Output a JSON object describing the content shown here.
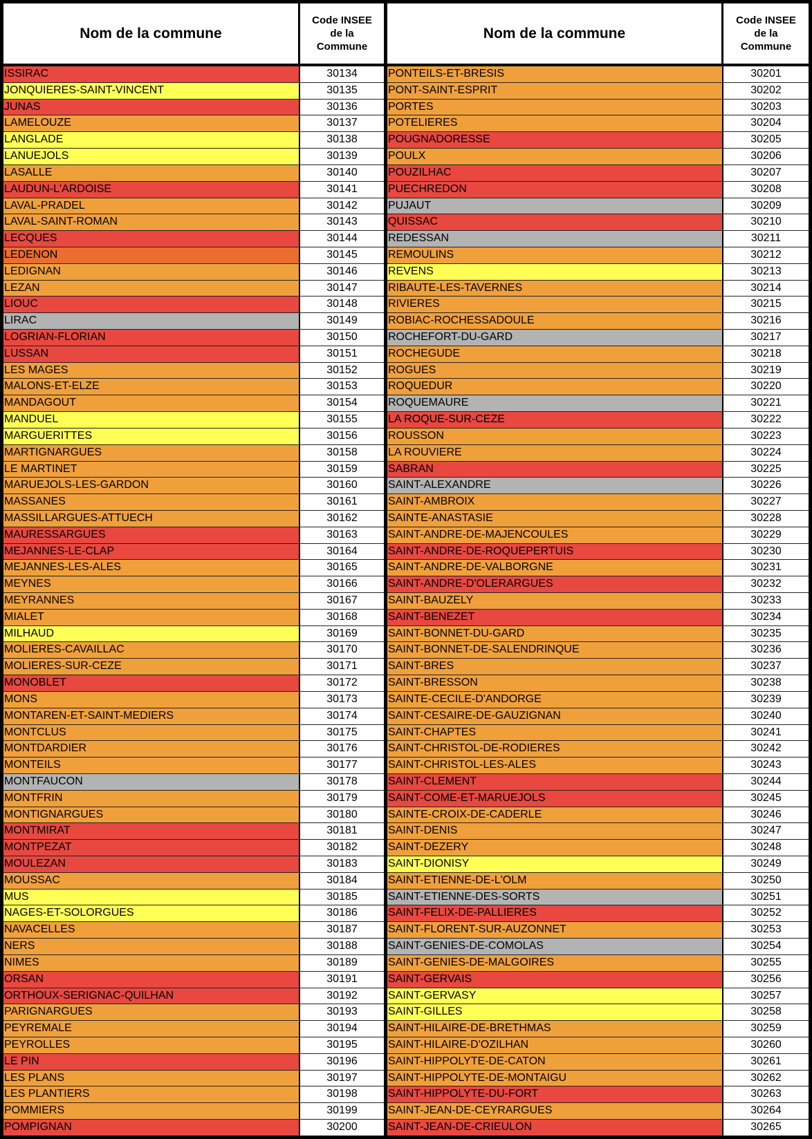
{
  "colors": {
    "r": "#e8483f",
    "o": "#f0a03b",
    "y": "#ffff55",
    "g": "#b3b3b3",
    "d": "#eb6e2e"
  },
  "headers": {
    "name": "Nom de la commune",
    "code_line1": "Code INSEE",
    "code_line2": "de la",
    "code_line3": "Commune"
  },
  "left": [
    [
      "ISSIRAC",
      "30134",
      "r"
    ],
    [
      "JONQUIERES-SAINT-VINCENT",
      "30135",
      "y"
    ],
    [
      "JUNAS",
      "30136",
      "r"
    ],
    [
      "LAMELOUZE",
      "30137",
      "o"
    ],
    [
      "LANGLADE",
      "30138",
      "y"
    ],
    [
      "LANUEJOLS",
      "30139",
      "y"
    ],
    [
      "LASALLE",
      "30140",
      "o"
    ],
    [
      "LAUDUN-L'ARDOISE",
      "30141",
      "r"
    ],
    [
      "LAVAL-PRADEL",
      "30142",
      "o"
    ],
    [
      "LAVAL-SAINT-ROMAN",
      "30143",
      "o"
    ],
    [
      "LECQUES",
      "30144",
      "r"
    ],
    [
      "LEDENON",
      "30145",
      "d"
    ],
    [
      "LEDIGNAN",
      "30146",
      "o"
    ],
    [
      "LEZAN",
      "30147",
      "o"
    ],
    [
      "LIOUC",
      "30148",
      "r"
    ],
    [
      "LIRAC",
      "30149",
      "g"
    ],
    [
      "LOGRIAN-FLORIAN",
      "30150",
      "r"
    ],
    [
      "LUSSAN",
      "30151",
      "r"
    ],
    [
      "LES MAGES",
      "30152",
      "o"
    ],
    [
      "MALONS-ET-ELZE",
      "30153",
      "o"
    ],
    [
      "MANDAGOUT",
      "30154",
      "o"
    ],
    [
      "MANDUEL",
      "30155",
      "y"
    ],
    [
      "MARGUERITTES",
      "30156",
      "y"
    ],
    [
      "MARTIGNARGUES",
      "30158",
      "o"
    ],
    [
      "LE MARTINET",
      "30159",
      "o"
    ],
    [
      "MARUEJOLS-LES-GARDON",
      "30160",
      "o"
    ],
    [
      "MASSANES",
      "30161",
      "o"
    ],
    [
      "MASSILLARGUES-ATTUECH",
      "30162",
      "o"
    ],
    [
      "MAURESSARGUES",
      "30163",
      "r"
    ],
    [
      "MEJANNES-LE-CLAP",
      "30164",
      "r"
    ],
    [
      "MEJANNES-LES-ALES",
      "30165",
      "o"
    ],
    [
      "MEYNES",
      "30166",
      "o"
    ],
    [
      "MEYRANNES",
      "30167",
      "o"
    ],
    [
      "MIALET",
      "30168",
      "o"
    ],
    [
      "MILHAUD",
      "30169",
      "y"
    ],
    [
      "MOLIERES-CAVAILLAC",
      "30170",
      "o"
    ],
    [
      "MOLIERES-SUR-CEZE",
      "30171",
      "o"
    ],
    [
      "MONOBLET",
      "30172",
      "r"
    ],
    [
      "MONS",
      "30173",
      "o"
    ],
    [
      "MONTAREN-ET-SAINT-MEDIERS",
      "30174",
      "o"
    ],
    [
      "MONTCLUS",
      "30175",
      "o"
    ],
    [
      "MONTDARDIER",
      "30176",
      "o"
    ],
    [
      "MONTEILS",
      "30177",
      "o"
    ],
    [
      "MONTFAUCON",
      "30178",
      "g"
    ],
    [
      "MONTFRIN",
      "30179",
      "o"
    ],
    [
      "MONTIGNARGUES",
      "30180",
      "o"
    ],
    [
      "MONTMIRAT",
      "30181",
      "r"
    ],
    [
      "MONTPEZAT",
      "30182",
      "r"
    ],
    [
      "MOULEZAN",
      "30183",
      "r"
    ],
    [
      "MOUSSAC",
      "30184",
      "o"
    ],
    [
      "MUS",
      "30185",
      "y"
    ],
    [
      "NAGES-ET-SOLORGUES",
      "30186",
      "y"
    ],
    [
      "NAVACELLES",
      "30187",
      "o"
    ],
    [
      "NERS",
      "30188",
      "o"
    ],
    [
      "NIMES",
      "30189",
      "o"
    ],
    [
      "ORSAN",
      "30191",
      "r"
    ],
    [
      "ORTHOUX-SERIGNAC-QUILHAN",
      "30192",
      "r"
    ],
    [
      "PARIGNARGUES",
      "30193",
      "o"
    ],
    [
      "PEYREMALE",
      "30194",
      "o"
    ],
    [
      "PEYROLLES",
      "30195",
      "o"
    ],
    [
      "LE PIN",
      "30196",
      "r"
    ],
    [
      "LES PLANS",
      "30197",
      "o"
    ],
    [
      "LES PLANTIERS",
      "30198",
      "o"
    ],
    [
      "POMMIERS",
      "30199",
      "o"
    ],
    [
      "POMPIGNAN",
      "30200",
      "r"
    ]
  ],
  "right": [
    [
      "PONTEILS-ET-BRESIS",
      "30201",
      "o"
    ],
    [
      "PONT-SAINT-ESPRIT",
      "30202",
      "o"
    ],
    [
      "PORTES",
      "30203",
      "o"
    ],
    [
      "POTELIERES",
      "30204",
      "o"
    ],
    [
      "POUGNADORESSE",
      "30205",
      "r"
    ],
    [
      "POULX",
      "30206",
      "o"
    ],
    [
      "POUZILHAC",
      "30207",
      "r"
    ],
    [
      "PUECHREDON",
      "30208",
      "r"
    ],
    [
      "PUJAUT",
      "30209",
      "g"
    ],
    [
      "QUISSAC",
      "30210",
      "r"
    ],
    [
      "REDESSAN",
      "30211",
      "g"
    ],
    [
      "REMOULINS",
      "30212",
      "o"
    ],
    [
      "REVENS",
      "30213",
      "y"
    ],
    [
      "RIBAUTE-LES-TAVERNES",
      "30214",
      "o"
    ],
    [
      "RIVIERES",
      "30215",
      "o"
    ],
    [
      "ROBIAC-ROCHESSADOULE",
      "30216",
      "o"
    ],
    [
      "ROCHEFORT-DU-GARD",
      "30217",
      "g"
    ],
    [
      "ROCHEGUDE",
      "30218",
      "o"
    ],
    [
      "ROGUES",
      "30219",
      "o"
    ],
    [
      "ROQUEDUR",
      "30220",
      "o"
    ],
    [
      "ROQUEMAURE",
      "30221",
      "g"
    ],
    [
      "LA ROQUE-SUR-CEZE",
      "30222",
      "r"
    ],
    [
      "ROUSSON",
      "30223",
      "o"
    ],
    [
      "LA ROUVIERE",
      "30224",
      "o"
    ],
    [
      "SABRAN",
      "30225",
      "r"
    ],
    [
      "SAINT-ALEXANDRE",
      "30226",
      "g"
    ],
    [
      "SAINT-AMBROIX",
      "30227",
      "o"
    ],
    [
      "SAINTE-ANASTASIE",
      "30228",
      "o"
    ],
    [
      "SAINT-ANDRE-DE-MAJENCOULES",
      "30229",
      "o"
    ],
    [
      "SAINT-ANDRE-DE-ROQUEPERTUIS",
      "30230",
      "r"
    ],
    [
      "SAINT-ANDRE-DE-VALBORGNE",
      "30231",
      "o"
    ],
    [
      "SAINT-ANDRE-D'OLERARGUES",
      "30232",
      "r"
    ],
    [
      "SAINT-BAUZELY",
      "30233",
      "o"
    ],
    [
      "SAINT-BENEZET",
      "30234",
      "r"
    ],
    [
      "SAINT-BONNET-DU-GARD",
      "30235",
      "o"
    ],
    [
      "SAINT-BONNET-DE-SALENDRINQUE",
      "30236",
      "o"
    ],
    [
      "SAINT-BRES",
      "30237",
      "o"
    ],
    [
      "SAINT-BRESSON",
      "30238",
      "o"
    ],
    [
      "SAINTE-CECILE-D'ANDORGE",
      "30239",
      "o"
    ],
    [
      "SAINT-CESAIRE-DE-GAUZIGNAN",
      "30240",
      "o"
    ],
    [
      "SAINT-CHAPTES",
      "30241",
      "o"
    ],
    [
      "SAINT-CHRISTOL-DE-RODIERES",
      "30242",
      "o"
    ],
    [
      "SAINT-CHRISTOL-LES-ALES",
      "30243",
      "o"
    ],
    [
      "SAINT-CLEMENT",
      "30244",
      "r"
    ],
    [
      "SAINT-COME-ET-MARUEJOLS",
      "30245",
      "r"
    ],
    [
      "SAINTE-CROIX-DE-CADERLE",
      "30246",
      "o"
    ],
    [
      "SAINT-DENIS",
      "30247",
      "o"
    ],
    [
      "SAINT-DEZERY",
      "30248",
      "o"
    ],
    [
      "SAINT-DIONISY",
      "30249",
      "y"
    ],
    [
      "SAINT-ETIENNE-DE-L'OLM",
      "30250",
      "o"
    ],
    [
      "SAINT-ETIENNE-DES-SORTS",
      "30251",
      "g"
    ],
    [
      "SAINT-FELIX-DE-PALLIERES",
      "30252",
      "r"
    ],
    [
      "SAINT-FLORENT-SUR-AUZONNET",
      "30253",
      "o"
    ],
    [
      "SAINT-GENIES-DE-COMOLAS",
      "30254",
      "g"
    ],
    [
      "SAINT-GENIES-DE-MALGOIRES",
      "30255",
      "o"
    ],
    [
      "SAINT-GERVAIS",
      "30256",
      "r"
    ],
    [
      "SAINT-GERVASY",
      "30257",
      "y"
    ],
    [
      "SAINT-GILLES",
      "30258",
      "y"
    ],
    [
      "SAINT-HILAIRE-DE-BRETHMAS",
      "30259",
      "o"
    ],
    [
      "SAINT-HILAIRE-D'OZILHAN",
      "30260",
      "o"
    ],
    [
      "SAINT-HIPPOLYTE-DE-CATON",
      "30261",
      "o"
    ],
    [
      "SAINT-HIPPOLYTE-DE-MONTAIGU",
      "30262",
      "o"
    ],
    [
      "SAINT-HIPPOLYTE-DU-FORT",
      "30263",
      "r"
    ],
    [
      "SAINT-JEAN-DE-CEYRARGUES",
      "30264",
      "o"
    ],
    [
      "SAINT-JEAN-DE-CRIEULON",
      "30265",
      "r"
    ]
  ]
}
